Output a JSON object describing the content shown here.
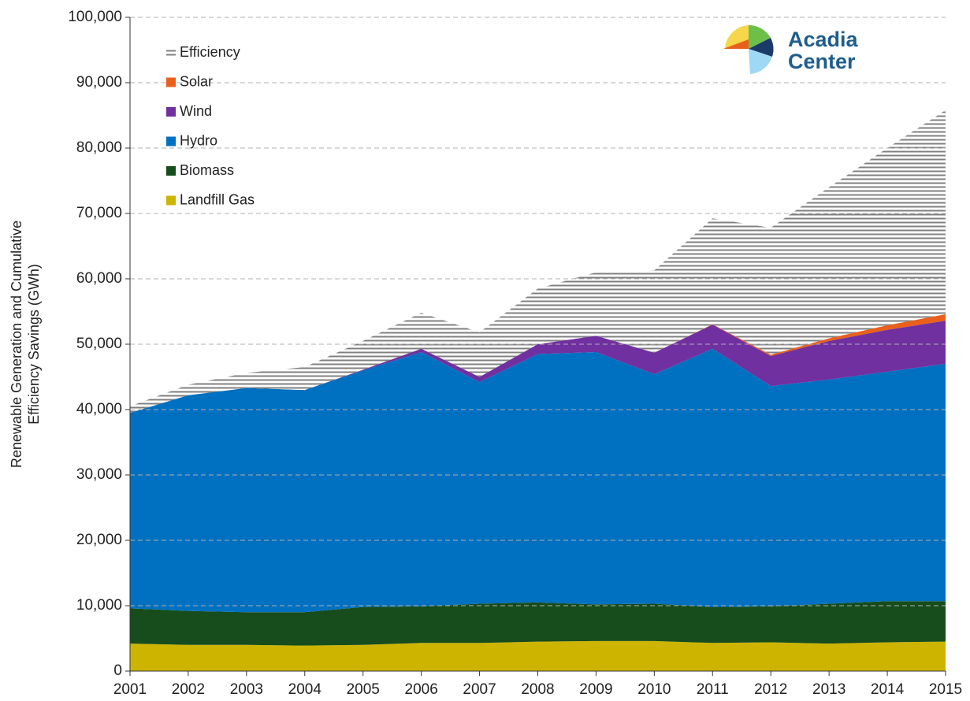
{
  "chart_data": {
    "type": "stacked_area",
    "ylabel": [
      "Renewable Generation and Cumulative",
      "Efficiency Savings (GWh)"
    ],
    "logo_text": [
      "Acadia",
      "Center"
    ],
    "categories": [
      "2001",
      "2002",
      "2003",
      "2004",
      "2005",
      "2006",
      "2007",
      "2008",
      "2009",
      "2010",
      "2011",
      "2012",
      "2013",
      "2014",
      "2015"
    ],
    "series": [
      {
        "name": "Landfill Gas",
        "color": "#cdb400",
        "values": [
          4200,
          4000,
          4000,
          3900,
          4000,
          4300,
          4300,
          4500,
          4600,
          4600,
          4300,
          4400,
          4200,
          4400,
          4500
        ]
      },
      {
        "name": "Biomass",
        "color": "#174d1c",
        "values": [
          5400,
          5200,
          5000,
          5100,
          5800,
          5600,
          6000,
          6000,
          5600,
          5700,
          5500,
          5500,
          6100,
          6300,
          6200
        ]
      },
      {
        "name": "Hydro",
        "color": "#0070c0",
        "values": [
          29900,
          33000,
          34300,
          34000,
          36200,
          38900,
          33900,
          38000,
          38600,
          35100,
          39500,
          33700,
          34300,
          35100,
          36300
        ]
      },
      {
        "name": "Wind",
        "color": "#7030a0",
        "values": [
          0,
          0,
          0,
          0,
          100,
          500,
          800,
          1500,
          2500,
          3300,
          3700,
          4600,
          5900,
          6400,
          6600
        ]
      },
      {
        "name": "Solar",
        "color": "#e8601c",
        "values": [
          0,
          0,
          0,
          0,
          0,
          0,
          0,
          0,
          0,
          0,
          50,
          200,
          400,
          700,
          1000
        ]
      },
      {
        "name": "Efficiency",
        "color": "#808080",
        "hatch": true,
        "values": [
          1000,
          1600,
          2300,
          3500,
          4400,
          5500,
          6800,
          8500,
          9700,
          12600,
          16200,
          19400,
          23100,
          27100,
          31200
        ]
      }
    ],
    "ylim": [
      0,
      100000
    ],
    "yticks": [
      0,
      {
        "value": 10000,
        "label": "10,000"
      },
      {
        "value": 20000,
        "label": "20,000"
      },
      {
        "value": 30000,
        "label": "30,000"
      },
      {
        "value": 40000,
        "label": "40,000"
      },
      {
        "value": 50000,
        "label": "50,000"
      },
      {
        "value": 60000,
        "label": "60,000"
      },
      {
        "value": 70000,
        "label": "70,000"
      },
      {
        "value": 80000,
        "label": "80,000"
      },
      {
        "value": 90000,
        "label": "90,000"
      },
      {
        "value": 100000,
        "label": "100,000"
      }
    ],
    "grid": true,
    "legend": "upper left"
  }
}
